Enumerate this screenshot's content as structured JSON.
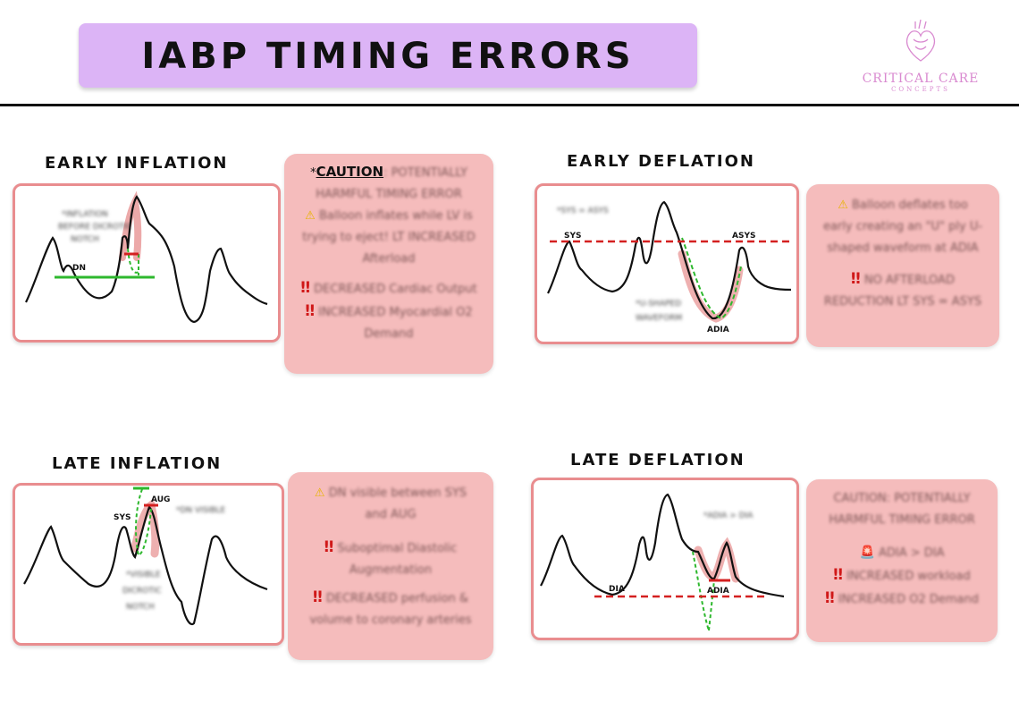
{
  "title": "IABP TIMING ERRORS",
  "logo": {
    "name": "CRITICAL CARE",
    "sub": "CONCEPTS"
  },
  "colors": {
    "title_bg": "#dcb4f6",
    "note_bg": "#f5bcbc",
    "box_border": "#e98d8f",
    "green": "#2eb82e",
    "red_dash": "#d42020"
  },
  "sections": {
    "early_inflation": {
      "title": "EARLY INFLATION",
      "labels": {
        "dn": "DN"
      },
      "blurred_labels": [
        "*INFLATION",
        "BEFORE DICROTIC",
        "NOTCH"
      ],
      "note": {
        "prefix": "*",
        "caution": "CAUTION",
        "caution_rest": ": POTENTIALLY",
        "line2": "HARMFUL TIMING ERROR",
        "line3": "Balloon inflates while LV is",
        "line4": "trying to eject! LT INCREASED",
        "line5": "Afterload",
        "line6": "DECREASED Cardiac Output",
        "line7": "INCREASED Myocardial O2",
        "line8": "Demand"
      }
    },
    "early_deflation": {
      "title": "EARLY DEFLATION",
      "labels": {
        "sys": "SYS",
        "asys": "ASYS",
        "adia": "ADIA"
      },
      "blurred_labels": [
        "*SYS = ASYS",
        "*U-SHAPED",
        "WAVEFORM"
      ],
      "note": {
        "line1": "Balloon deflates too",
        "line2": "early creating an \"U\" ply U-",
        "line3": "shaped waveform at ADIA",
        "line4": "NO AFTERLOAD",
        "line5": "REDUCTION LT SYS = ASYS"
      }
    },
    "late_inflation": {
      "title": "LATE INFLATION",
      "labels": {
        "sys": "SYS",
        "aug": "AUG"
      },
      "blurred_labels": [
        "*DN VISIBLE",
        "*VISIBLE",
        "DICROTIC",
        "NOTCH"
      ],
      "note": {
        "line1": "DN visible between SYS",
        "line2": "and AUG",
        "line3": "Suboptimal Diastolic",
        "line4": "Augmentation",
        "line5": "DECREASED perfusion &",
        "line6": "volume to coronary arteries"
      }
    },
    "late_deflation": {
      "title": "LATE DEFLATION",
      "labels": {
        "dia": "DIA",
        "adia": "ADIA"
      },
      "blurred_labels": [
        "*ADIA > DIA"
      ],
      "note": {
        "line1": "CAUTION: POTENTIALLY",
        "line2": "HARMFUL TIMING ERROR",
        "line3": "ADIA > DIA",
        "line4": "INCREASED workload",
        "line5": "INCREASED O2 Demand"
      }
    }
  }
}
